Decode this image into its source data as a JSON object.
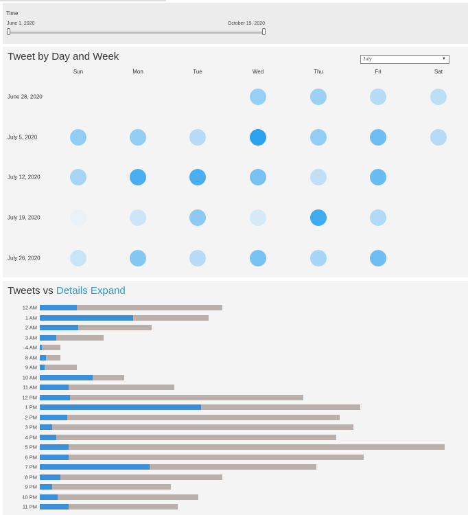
{
  "time_filter": {
    "label": "Time",
    "start": "June 1, 2020",
    "end": "October 19, 2020"
  },
  "calendar": {
    "title": "Tweet by Day and Week",
    "month_select": "July",
    "days": [
      "Sun",
      "Mon",
      "Tue",
      "Wed",
      "Thu",
      "Fri",
      "Sat"
    ],
    "weeks": [
      "June 28, 2020",
      "July 5, 2020",
      "July 12, 2020",
      "July 19, 2020",
      "July 26, 2020"
    ]
  },
  "bars": {
    "title_prefix": "Tweets vs",
    "title_link": "Details Expand"
  },
  "chart_data": [
    {
      "type": "heatmap",
      "title": "Tweet by Day and Week",
      "x": [
        "Sun",
        "Mon",
        "Tue",
        "Wed",
        "Thu",
        "Fri",
        "Sat"
      ],
      "y": [
        "June 28, 2020",
        "July 5, 2020",
        "July 12, 2020",
        "July 19, 2020",
        "July 26, 2020"
      ],
      "values": [
        [
          null,
          null,
          null,
          0.42,
          0.4,
          0.28,
          0.24
        ],
        [
          0.45,
          0.45,
          0.28,
          0.95,
          0.45,
          0.62,
          0.28
        ],
        [
          0.35,
          0.8,
          0.8,
          0.58,
          0.22,
          0.65,
          null
        ],
        [
          0.02,
          0.16,
          0.48,
          0.12,
          0.85,
          0.3,
          null
        ],
        [
          0.18,
          0.52,
          0.28,
          0.58,
          0.35,
          0.62,
          null
        ]
      ],
      "color_scale": [
        "#eef3f7",
        "#219ef0"
      ]
    },
    {
      "type": "bar",
      "orientation": "horizontal",
      "title": "Tweets vs Details Expand",
      "categories": [
        "12 AM",
        "1 AM",
        "2 AM",
        "3 AM",
        "4 AM",
        "8 AM",
        "9 AM",
        "10 AM",
        "11 AM",
        "12 PM",
        "1 PM",
        "2 PM",
        "3 PM",
        "4 PM",
        "5 PM",
        "6 PM",
        "7 PM",
        "8 PM",
        "9 PM",
        "10 PM",
        "11 PM"
      ],
      "series": [
        {
          "values": [
            268,
            248,
            164,
            94,
            30,
            30,
            54,
            124,
            198,
            387,
            471,
            441,
            461,
            436,
            595,
            476,
            406,
            268,
            193,
            233,
            203
          ]
        },
        {
          "values": [
            54,
            137,
            56,
            24,
            3,
            9,
            7,
            78,
            42,
            44,
            237,
            40,
            18,
            24,
            42,
            42,
            161,
            30,
            18,
            26,
            42
          ]
        }
      ],
      "series_colors": [
        "#bab0ab",
        "#3a8fd8"
      ],
      "xlim": [
        0,
        600
      ]
    }
  ]
}
